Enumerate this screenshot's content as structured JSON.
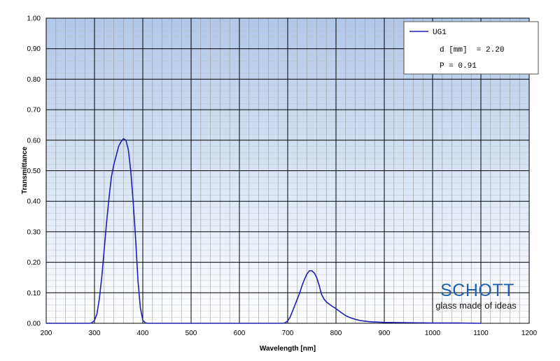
{
  "chart_data": {
    "type": "line",
    "title": "",
    "xlabel": "Wavelength [nm]",
    "ylabel": "Transmittance",
    "xlim": [
      200,
      1200
    ],
    "ylim": [
      0,
      1
    ],
    "x_ticks": [
      "200",
      "300",
      "400",
      "500",
      "600",
      "700",
      "800",
      "900",
      "1000",
      "1100",
      "1200"
    ],
    "y_ticks": [
      "0.00",
      "0.10",
      "0.20",
      "0.30",
      "0.40",
      "0.50",
      "0.60",
      "0.70",
      "0.80",
      "0.90",
      "1.00"
    ],
    "grid": true,
    "legend_position": "top-right",
    "series": [
      {
        "name": "UG1",
        "color": "#1f1fb4",
        "points": [
          [
            200,
            0
          ],
          [
            290,
            0
          ],
          [
            295,
            0.002
          ],
          [
            300,
            0.01
          ],
          [
            305,
            0.03
          ],
          [
            310,
            0.08
          ],
          [
            315,
            0.15
          ],
          [
            320,
            0.24
          ],
          [
            325,
            0.33
          ],
          [
            330,
            0.41
          ],
          [
            335,
            0.48
          ],
          [
            340,
            0.52
          ],
          [
            345,
            0.55
          ],
          [
            350,
            0.58
          ],
          [
            355,
            0.595
          ],
          [
            360,
            0.605
          ],
          [
            365,
            0.6
          ],
          [
            370,
            0.57
          ],
          [
            375,
            0.5
          ],
          [
            380,
            0.4
          ],
          [
            385,
            0.28
          ],
          [
            390,
            0.14
          ],
          [
            395,
            0.05
          ],
          [
            400,
            0.01
          ],
          [
            405,
            0.002
          ],
          [
            410,
            0
          ],
          [
            690,
            0
          ],
          [
            695,
            0.002
          ],
          [
            700,
            0.008
          ],
          [
            705,
            0.02
          ],
          [
            710,
            0.04
          ],
          [
            715,
            0.06
          ],
          [
            720,
            0.08
          ],
          [
            725,
            0.1
          ],
          [
            730,
            0.125
          ],
          [
            735,
            0.145
          ],
          [
            740,
            0.162
          ],
          [
            745,
            0.172
          ],
          [
            750,
            0.172
          ],
          [
            755,
            0.165
          ],
          [
            760,
            0.15
          ],
          [
            765,
            0.125
          ],
          [
            770,
            0.095
          ],
          [
            775,
            0.08
          ],
          [
            780,
            0.07
          ],
          [
            790,
            0.058
          ],
          [
            800,
            0.048
          ],
          [
            810,
            0.036
          ],
          [
            820,
            0.025
          ],
          [
            830,
            0.018
          ],
          [
            840,
            0.013
          ],
          [
            850,
            0.009
          ],
          [
            870,
            0.005
          ],
          [
            900,
            0.003
          ],
          [
            950,
            0.002
          ],
          [
            1000,
            0.001
          ],
          [
            1050,
            0.001
          ],
          [
            1100,
            0
          ]
        ]
      }
    ],
    "legend": {
      "line1": "UG1",
      "line2": "d [mm]  = 2.20",
      "line3": "P = 0.91"
    }
  },
  "logo": {
    "name": "SCHOTT",
    "tagline": "glass made of ideas",
    "color": "#1f5fa8"
  }
}
